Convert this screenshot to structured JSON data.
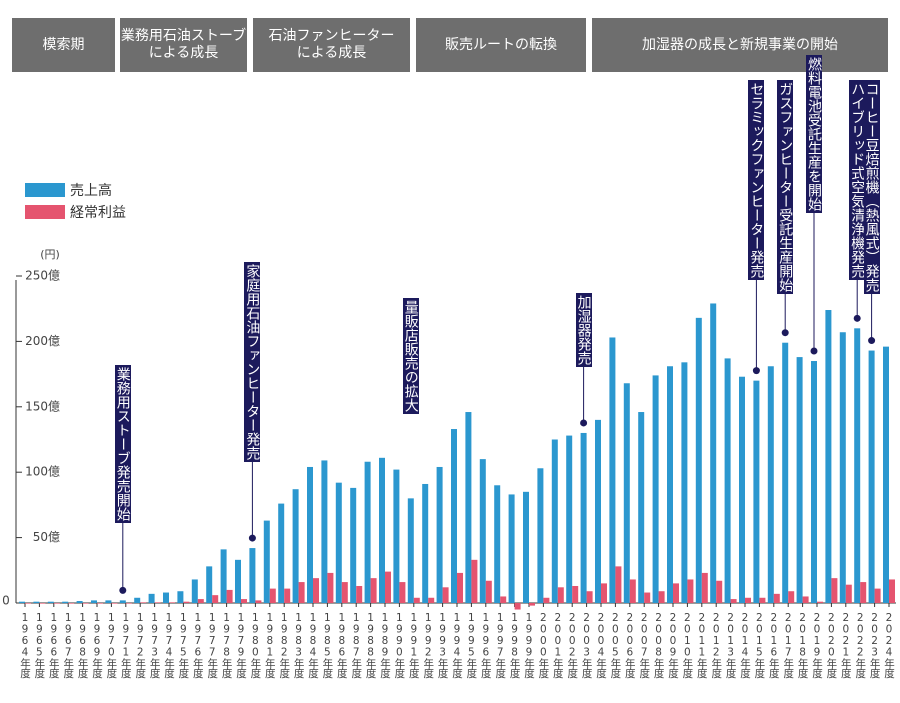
{
  "chart_data": {
    "type": "bar",
    "eras": [
      "模索期",
      "業務用石油ストーブ\nによる成長",
      "石油ファンヒーター\nによる成長",
      "販売ルートの転換",
      "加湿器の成長と新規事業の開始"
    ],
    "unit_label": "(円)",
    "categories": [
      "1964年度",
      "1965年度",
      "1966年度",
      "1967年度",
      "1968年度",
      "1969年度",
      "1970年度",
      "1971年度",
      "1972年度",
      "1973年度",
      "1974年度",
      "1975年度",
      "1976年度",
      "1977年度",
      "1978年度",
      "1979年度",
      "1980年度",
      "1981年度",
      "1982年度",
      "1983年度",
      "1984年度",
      "1985年度",
      "1986年度",
      "1987年度",
      "1988年度",
      "1989年度",
      "1990年度",
      "1991年度",
      "1992年度",
      "1993年度",
      "1994年度",
      "1995年度",
      "1996年度",
      "1997年度",
      "1998年度",
      "1999年度",
      "2000年度",
      "2001年度",
      "2002年度",
      "2003年度",
      "2004年度",
      "2005年度",
      "2006年度",
      "2007年度",
      "2008年度",
      "2009年度",
      "2010年度",
      "2011年度",
      "2012年度",
      "2013年度",
      "2014年度",
      "2015年度",
      "2016年度",
      "2017年度",
      "2018年度",
      "2019年度",
      "2020年度",
      "2021年度",
      "2022年度",
      "2023年度",
      "2024年度"
    ],
    "series": [
      {
        "name": "売上高",
        "color": "#2b97cf",
        "values": [
          1,
          1,
          1,
          1,
          1.5,
          2,
          2,
          2,
          4,
          7,
          8,
          9,
          18,
          28,
          41,
          33,
          42,
          63,
          76,
          87,
          104,
          109,
          92,
          88,
          108,
          111,
          102,
          80,
          91,
          104,
          133,
          146,
          110,
          90,
          83,
          85,
          103,
          125,
          128,
          130,
          140,
          203,
          168,
          146,
          174,
          181,
          184,
          218,
          229,
          187,
          173,
          170,
          181,
          199,
          188,
          185,
          224,
          207,
          210,
          193,
          196
        ]
      },
      {
        "name": "経常利益",
        "color": "#e5546f",
        "values": [
          0,
          0,
          0,
          0,
          0,
          0,
          0,
          0,
          0.5,
          0.5,
          0.5,
          1,
          3,
          6,
          10,
          3,
          2,
          11,
          11,
          16,
          19,
          23,
          16,
          13,
          19,
          24,
          16,
          4,
          4,
          12,
          23,
          33,
          17,
          5,
          -5,
          -2,
          4,
          12,
          13,
          9,
          15,
          28,
          18,
          8,
          9,
          15,
          18,
          23,
          17,
          3,
          4,
          4,
          7,
          9,
          5,
          1,
          19,
          14,
          16,
          11,
          18
        ]
      }
    ],
    "ylim": [
      0,
      250
    ],
    "yticks": [
      0,
      {
        "value": 50,
        "label": "50億"
      },
      {
        "value": 100,
        "label": "100億"
      },
      {
        "value": 150,
        "label": "150億"
      },
      {
        "value": 200,
        "label": "200億"
      },
      {
        "value": 250,
        "label": "250億"
      }
    ],
    "annotations": [
      {
        "text": "業務用ストーブ発売開始",
        "category": "1971年度"
      },
      {
        "text": "家庭用石油ファンヒーター発売",
        "category": "1980年度"
      },
      {
        "text": "量販店販売の拡大",
        "category": "1991年度"
      },
      {
        "text": "加湿器発売",
        "category": "2003年度"
      },
      {
        "text": "セラミックファンヒーター発売",
        "category": "2015年度"
      },
      {
        "text": "ガスファンヒーター受託生産開始",
        "category": "2017年度"
      },
      {
        "text": "燃料電池受託生産を開始",
        "category": "2019年度"
      },
      {
        "text": "ハイブリッド式空気清浄機発売",
        "category": "2022年度"
      },
      {
        "text": "コーヒー豆焙煎機（熱風式）発売",
        "category": "2023年度"
      }
    ]
  }
}
